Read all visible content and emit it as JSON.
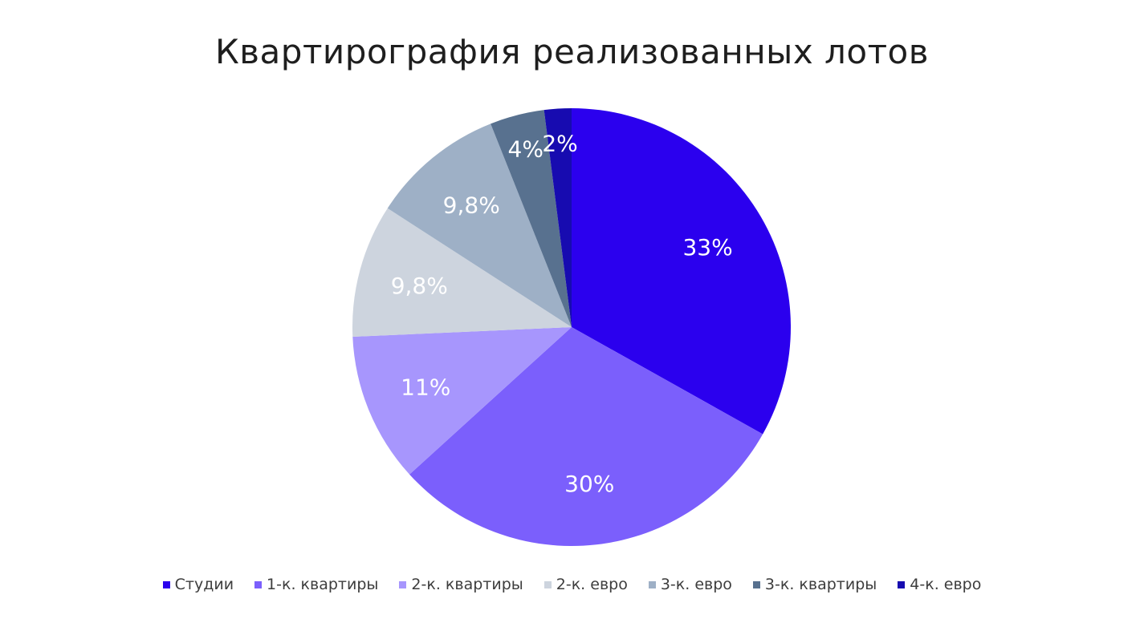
{
  "chart_data": {
    "type": "pie",
    "title": "Квартирография реализованных лотов",
    "slices": [
      {
        "name": "Студии",
        "value": 33,
        "label": "33%",
        "color": "#2b00ee",
        "label_color": "#ffffff"
      },
      {
        "name": "1-к. квартиры",
        "value": 30,
        "label": "30%",
        "color": "#7b5ffc",
        "label_color": "#ffffff"
      },
      {
        "name": "2-к. квартиры",
        "value": 11,
        "label": "11%",
        "color": "#a796fd",
        "label_color": "#ffffff"
      },
      {
        "name": "2-к. евро",
        "value": 9.8,
        "label": "9,8%",
        "color": "#cdd4de",
        "label_color": "#ffffff"
      },
      {
        "name": "3-к. евро",
        "value": 9.8,
        "label": "9,8%",
        "color": "#9eb0c6",
        "label_color": "#ffffff"
      },
      {
        "name": "3-к. квартиры",
        "value": 4,
        "label": "4%",
        "color": "#58718f",
        "label_color": "#ffffff"
      },
      {
        "name": "4-к. евро",
        "value": 2,
        "label": "2%",
        "color": "#170bb0",
        "label_color": "#ffffff"
      }
    ],
    "legend_position": "bottom"
  }
}
